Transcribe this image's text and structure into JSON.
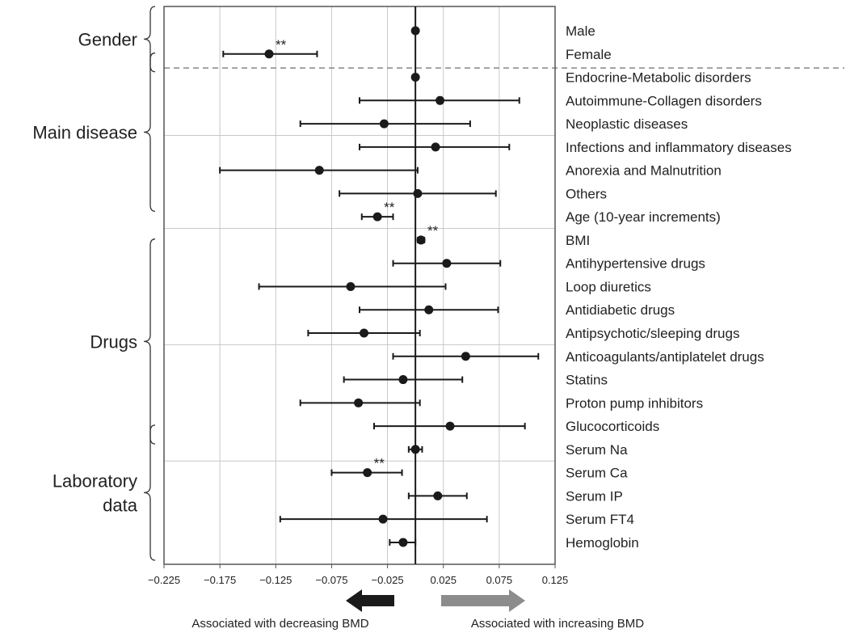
{
  "chart_data": {
    "type": "forest",
    "xlim": [
      -0.225,
      0.125
    ],
    "xticks": [
      "−0.225",
      "−0.175",
      "−0.125",
      "−0.075",
      "−0.025",
      "0.025",
      "0.075",
      "0.125"
    ],
    "xtick_values": [
      -0.225,
      -0.175,
      -0.125,
      -0.075,
      -0.025,
      0.025,
      0.075,
      0.125
    ],
    "reference_line": 0,
    "grid": true,
    "significance_marker": "**",
    "rows": [
      {
        "label": "Male",
        "estimate": 0.0,
        "lower": 0.0,
        "upper": 0.0,
        "sig": ""
      },
      {
        "label": "Female",
        "estimate": -0.131,
        "lower": -0.172,
        "upper": -0.088,
        "sig": "**"
      },
      {
        "label": "Endocrine-Metabolic disorders",
        "estimate": 0.0,
        "lower": 0.0,
        "upper": 0.0,
        "sig": ""
      },
      {
        "label": "Autoimmune-Collagen disorders",
        "estimate": 0.022,
        "lower": -0.05,
        "upper": 0.093,
        "sig": ""
      },
      {
        "label": "Neoplastic diseases",
        "estimate": -0.028,
        "lower": -0.103,
        "upper": 0.049,
        "sig": ""
      },
      {
        "label": "Infections and inflammatory diseases",
        "estimate": 0.018,
        "lower": -0.05,
        "upper": 0.084,
        "sig": ""
      },
      {
        "label": "Anorexia and Malnutrition",
        "estimate": -0.086,
        "lower": -0.175,
        "upper": 0.002,
        "sig": ""
      },
      {
        "label": "Others",
        "estimate": 0.002,
        "lower": -0.068,
        "upper": 0.072,
        "sig": ""
      },
      {
        "label": "Age (10-year increments)",
        "estimate": -0.034,
        "lower": -0.048,
        "upper": -0.02,
        "sig": "**"
      },
      {
        "label": "BMI",
        "estimate": 0.005,
        "lower": 0.002,
        "upper": 0.008,
        "sig": "**"
      },
      {
        "label": "Antihypertensive drugs",
        "estimate": 0.028,
        "lower": -0.02,
        "upper": 0.076,
        "sig": ""
      },
      {
        "label": "Loop diuretics",
        "estimate": -0.058,
        "lower": -0.14,
        "upper": 0.027,
        "sig": ""
      },
      {
        "label": "Antidiabetic drugs",
        "estimate": 0.012,
        "lower": -0.05,
        "upper": 0.074,
        "sig": ""
      },
      {
        "label": "Antipsychotic/sleeping drugs",
        "estimate": -0.046,
        "lower": -0.096,
        "upper": 0.004,
        "sig": ""
      },
      {
        "label": "Anticoagulants/antiplatelet drugs",
        "estimate": 0.045,
        "lower": -0.02,
        "upper": 0.11,
        "sig": ""
      },
      {
        "label": "Statins",
        "estimate": -0.011,
        "lower": -0.064,
        "upper": 0.042,
        "sig": ""
      },
      {
        "label": "Proton pump inhibitors",
        "estimate": -0.051,
        "lower": -0.103,
        "upper": 0.004,
        "sig": ""
      },
      {
        "label": "Glucocorticoids",
        "estimate": 0.031,
        "lower": -0.037,
        "upper": 0.098,
        "sig": ""
      },
      {
        "label": "Serum Na",
        "estimate": 0.0,
        "lower": -0.006,
        "upper": 0.006,
        "sig": ""
      },
      {
        "label": "Serum Ca",
        "estimate": -0.043,
        "lower": -0.075,
        "upper": -0.012,
        "sig": "**"
      },
      {
        "label": "Serum IP",
        "estimate": 0.02,
        "lower": -0.006,
        "upper": 0.046,
        "sig": ""
      },
      {
        "label": "Serum FT4",
        "estimate": -0.029,
        "lower": -0.121,
        "upper": 0.064,
        "sig": ""
      },
      {
        "label": "Hemoglobin",
        "estimate": -0.011,
        "lower": -0.023,
        "upper": 0.0,
        "sig": ""
      }
    ],
    "groups": [
      {
        "label_lines": [
          "Gender"
        ],
        "first_row": 0,
        "last_row": 1
      },
      {
        "label_lines": [
          "Main disease"
        ],
        "first_row": 2,
        "last_row": 7
      },
      {
        "label_lines": [
          "Drugs"
        ],
        "first_row": 10,
        "last_row": 17
      },
      {
        "label_lines": [
          "Laboratory",
          "data"
        ],
        "first_row": 18,
        "last_row": 22
      }
    ],
    "legend": [
      {
        "label": "Associated with decreasing BMD",
        "direction": "left",
        "color": "#1a1a1a"
      },
      {
        "label": "Associated with increasing BMD",
        "direction": "right",
        "color": "#8c8c8c"
      }
    ],
    "colors": {
      "marks": "#1a1a1a",
      "grid": "#c8c8c8",
      "dashed_separator": "#888888"
    }
  }
}
